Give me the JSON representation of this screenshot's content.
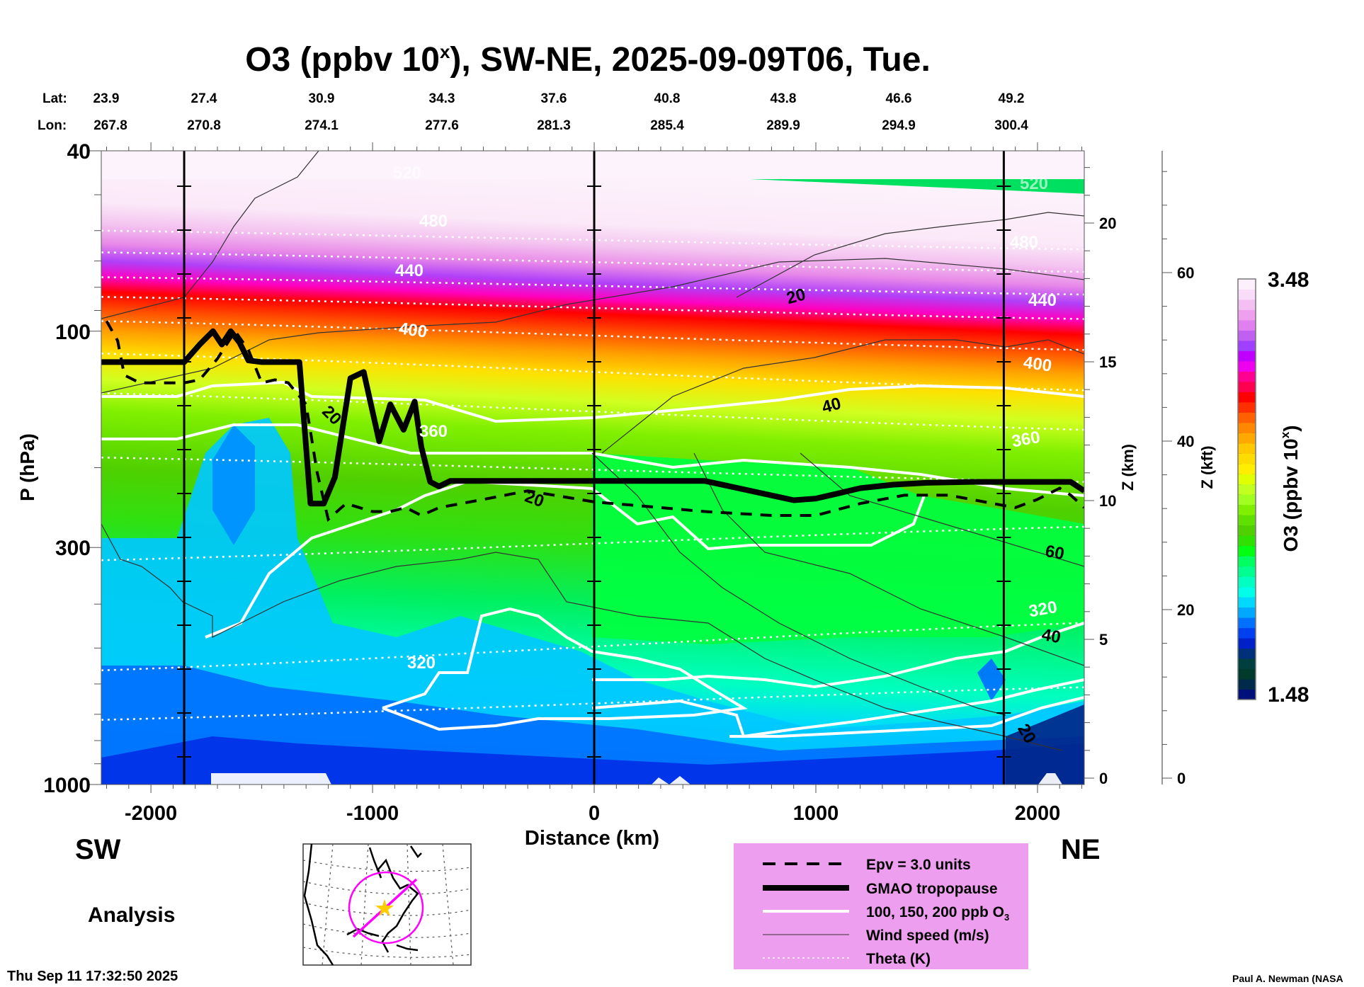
{
  "chart_data": {
    "type": "heatmap",
    "title": "O3 (ppbv 10",
    "title_sup": "x",
    "title_rest": "), SW-NE, 2025-09-09T06, Tue.",
    "xlabel": "Distance (km)",
    "ylabel": "P (hPa)",
    "y2label": "Z (km)",
    "y3label": "Z (kft)",
    "colorbar_label": "O3 (ppbv 10",
    "colorbar_label_sup": "x",
    "colorbar_label_end": ")",
    "colorbar_range": [
      1.48,
      3.48
    ],
    "colorbar_min_label": "1.48",
    "colorbar_max_label": "3.48",
    "colorbar_colors": [
      "#00107a",
      "#002a4a",
      "#003a2a",
      "#003f3f",
      "#00307a",
      "#0020c8",
      "#0040f0",
      "#0070ff",
      "#00a8ff",
      "#00d8ff",
      "#00ffe8",
      "#00ffc0",
      "#00ff90",
      "#00ff60",
      "#00ff10",
      "#30e000",
      "#50d000",
      "#60e000",
      "#80f000",
      "#a0ff20",
      "#c0ff20",
      "#e0ff00",
      "#ffee00",
      "#ffdc00",
      "#ffc800",
      "#ffa800",
      "#ff8800",
      "#ff6000",
      "#ff3000",
      "#ff0000",
      "#ff0050",
      "#ff0090",
      "#ee00ee",
      "#c000ff",
      "#a040ff",
      "#c060f0",
      "#e080f0",
      "#eea0ee",
      "#f4c0f4",
      "#f8dcf8",
      "#fcf0fc"
    ],
    "xlim": [
      -2224,
      2211
    ],
    "ylim": [
      1000,
      40
    ],
    "yscale": "log",
    "xticks": [
      -2000,
      -1000,
      0,
      1000,
      2000
    ],
    "xtick_labels": [
      "-2000",
      "-1000",
      "0",
      "1000",
      "2000"
    ],
    "yticks": [
      40,
      100,
      300,
      1000
    ],
    "ytick_labels": [
      "40",
      "100",
      "300",
      "1000"
    ],
    "z_km_ticks": [
      0,
      5,
      10,
      15,
      20
    ],
    "z_kft_ticks": [
      0,
      20,
      40,
      60
    ],
    "vertical_markers_km": [
      -1850,
      0,
      1848
    ],
    "lat_label": "Lat:",
    "lon_label": "Lon:",
    "lat_values": [
      "23.9",
      "27.4",
      "30.9",
      "34.3",
      "37.6",
      "40.8",
      "43.8",
      "46.6",
      "49.2"
    ],
    "lon_values": [
      "267.8",
      "270.8",
      "274.1",
      "277.6",
      "281.3",
      "285.4",
      "289.9",
      "294.9",
      "300.4"
    ],
    "o3_bands_by_pressure": [
      {
        "p": 40,
        "color": "#fdf3fc"
      },
      {
        "p": 52,
        "color": "#fbe8f8"
      },
      {
        "p": 58,
        "color": "#f4c4f0"
      },
      {
        "p": 64,
        "color": "#e88ae8"
      },
      {
        "p": 70,
        "color": "#b040f8"
      },
      {
        "p": 76,
        "color": "#ff00c0"
      },
      {
        "p": 82,
        "color": "#ff0000"
      },
      {
        "p": 90,
        "color": "#ff5000"
      },
      {
        "p": 100,
        "color": "#ffa000"
      },
      {
        "p": 112,
        "color": "#ffe000"
      },
      {
        "p": 128,
        "color": "#d0ff20"
      },
      {
        "p": 150,
        "color": "#80f000"
      },
      {
        "p": 200,
        "color": "#50d000"
      },
      {
        "p": 260,
        "color": "#30e010"
      },
      {
        "p": 360,
        "color": "#00f060"
      },
      {
        "p": 520,
        "color": "#00ffc0"
      },
      {
        "p": 640,
        "color": "#00d8ff"
      },
      {
        "p": 760,
        "color": "#0090ff"
      },
      {
        "p": 880,
        "color": "#0040f0"
      },
      {
        "p": 1000,
        "color": "#0028d0"
      }
    ],
    "series": [
      {
        "name": "GMAO tropopause",
        "style": "thick-solid",
        "x": [
          -2224,
          -1850,
          -1780,
          -1720,
          -1680,
          -1640,
          -1600,
          -1560,
          -1500,
          -1450,
          -1400,
          -1330,
          -1280,
          -1220,
          -1170,
          -1100,
          -1040,
          -970,
          -920,
          -860,
          -810,
          -780,
          -740,
          -700,
          -650,
          -600,
          -540,
          -400,
          0,
          500,
          900,
          1000,
          1100,
          1200,
          1350,
          1500,
          1700,
          1850,
          2150,
          2211
        ],
        "p": [
          117,
          117,
          107,
          100,
          107,
          100,
          106,
          116,
          117,
          117,
          117,
          117,
          240,
          240,
          210,
          127,
          123,
          175,
          145,
          165,
          143,
          180,
          215,
          220,
          214,
          214,
          214,
          214,
          214,
          214,
          236,
          234,
          228,
          222,
          218,
          216,
          215,
          215,
          215,
          225
        ]
      },
      {
        "name": "Epv = 3.0 units",
        "style": "dashed",
        "x": [
          -2200,
          -2150,
          -2120,
          -2050,
          -1950,
          -1850,
          -1780,
          -1700,
          -1620,
          -1560,
          -1500,
          -1440,
          -1380,
          -1300,
          -1250,
          -1200,
          -1120,
          -1000,
          -920,
          -850,
          -780,
          -700,
          -600,
          -500,
          -300,
          0,
          300,
          500,
          800,
          1000,
          1200,
          1400,
          1600,
          1800,
          1900,
          2000,
          2100,
          2150,
          2211
        ],
        "p": [
          95,
          105,
          125,
          130,
          130,
          130,
          128,
          115,
          100,
          110,
          130,
          128,
          130,
          145,
          205,
          260,
          240,
          250,
          250,
          245,
          255,
          245,
          240,
          235,
          225,
          238,
          245,
          250,
          255,
          255,
          240,
          230,
          230,
          240,
          245,
          235,
          222,
          230,
          245
        ]
      }
    ],
    "o3_contours_ppb": [
      100,
      150,
      200
    ],
    "wind_contour_labels": [
      "20",
      "20",
      "40",
      "60",
      "40",
      "20"
    ],
    "theta_levels_K": [
      320,
      360,
      400,
      440,
      480,
      520
    ],
    "theta_labels": [
      "320",
      "360",
      "400",
      "440",
      "480",
      "520"
    ],
    "theta_lines": [
      {
        "theta": 520,
        "p": [
          40,
          40
        ]
      },
      {
        "theta": 480,
        "p": [
          60,
          66
        ]
      },
      {
        "theta": 460,
        "p": [
          67,
          74
        ]
      },
      {
        "theta": 440,
        "p": [
          76,
          83
        ]
      },
      {
        "theta": 420,
        "p": [
          84,
          94
        ]
      },
      {
        "theta": 400,
        "p": [
          95,
          110
        ]
      },
      {
        "theta": 380,
        "p": [
          112,
          135
        ]
      },
      {
        "theta": 360,
        "p": [
          137,
          165
        ]
      },
      {
        "theta": 340,
        "p": [
          190,
          215
        ]
      },
      {
        "theta": 330,
        "p": [
          320,
          270
        ]
      },
      {
        "theta": 320,
        "p": [
          560,
          440
        ]
      },
      {
        "theta": 310,
        "p": [
          720,
          610
        ]
      }
    ]
  },
  "labels": {
    "sw": "SW",
    "ne": "NE",
    "analysis": "Analysis",
    "timestamp": "Thu Sep 11 17:32:50 2025",
    "credit": "Paul A. Newman (NASA"
  },
  "legend": {
    "items": [
      {
        "label": "Epv = 3.0 units",
        "style": "dashed"
      },
      {
        "label": "GMAO tropopause",
        "style": "thick"
      },
      {
        "label": "100, 150, 200 ppb O",
        "sub": "3",
        "style": "white"
      },
      {
        "label": "Wind speed (m/s)",
        "style": "thin"
      },
      {
        "label": "Theta (K)",
        "style": "dotted"
      }
    ],
    "background": "#EE9EEE"
  },
  "map_inset": {
    "track_color": "#ff00ff",
    "center_marker": "star-icon",
    "star_color": "#ffcc00"
  }
}
